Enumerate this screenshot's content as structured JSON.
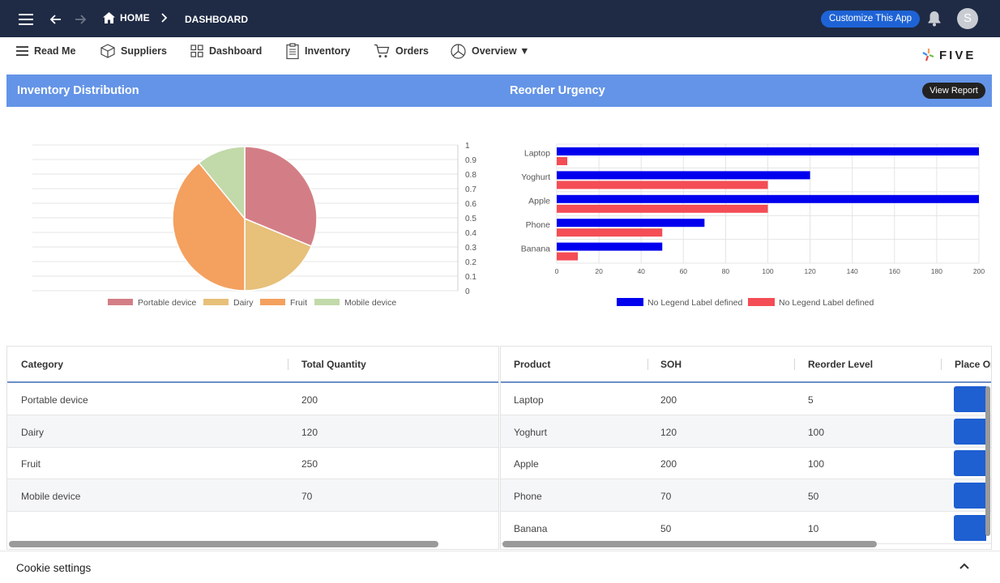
{
  "topbar": {
    "home_label": "HOME",
    "dashboard_label": "DASHBOARD",
    "customize_label": "Customize This App",
    "avatar_initial": "S"
  },
  "menu": {
    "items": [
      {
        "label": "Read Me",
        "icon": "list-icon"
      },
      {
        "label": "Suppliers",
        "icon": "box-icon"
      },
      {
        "label": "Dashboard",
        "icon": "grid-icon"
      },
      {
        "label": "Inventory",
        "icon": "clipboard-icon"
      },
      {
        "label": "Orders",
        "icon": "cart-icon"
      },
      {
        "label": "Overview ▼",
        "icon": "pie-icon"
      }
    ],
    "logo_text": "FIVE"
  },
  "panels": {
    "left_title": "Inventory Distribution",
    "right_title": "Reorder Urgency",
    "view_report_label": "View Report"
  },
  "chart_data": [
    {
      "type": "pie",
      "title": "Inventory Distribution",
      "categories": [
        "Portable device",
        "Dairy",
        "Fruit",
        "Mobile device"
      ],
      "values": [
        200,
        120,
        250,
        70
      ],
      "colors": [
        "#d37e86",
        "#e7c07a",
        "#f4a05f",
        "#c2d9a9"
      ],
      "y_ticks": [
        "1",
        "0.9",
        "0.8",
        "0.7",
        "0.6",
        "0.5",
        "0.4",
        "0.3",
        "0.2",
        "0.1",
        "0"
      ],
      "legend_position": "bottom"
    },
    {
      "type": "bar",
      "orientation": "horizontal",
      "title": "Reorder Urgency",
      "categories": [
        "Laptop",
        "Yoghurt",
        "Apple",
        "Phone",
        "Banana"
      ],
      "series": [
        {
          "name": "No Legend Label defined",
          "color": "#0000ee",
          "values": [
            200,
            120,
            200,
            70,
            50
          ]
        },
        {
          "name": "No Legend Label defined",
          "color": "#f44d55",
          "values": [
            5,
            100,
            100,
            50,
            10
          ]
        }
      ],
      "xlim": [
        0,
        200
      ],
      "x_ticks": [
        "0",
        "20",
        "40",
        "60",
        "80",
        "100",
        "120",
        "140",
        "160",
        "180",
        "200"
      ],
      "legend_position": "bottom"
    }
  ],
  "category_table": {
    "columns": [
      "Category",
      "Total Quantity"
    ],
    "rows": [
      [
        "Portable device",
        "200"
      ],
      [
        "Dairy",
        "120"
      ],
      [
        "Fruit",
        "250"
      ],
      [
        "Mobile device",
        "70"
      ]
    ]
  },
  "product_table": {
    "columns": [
      "Product",
      "SOH",
      "Reorder Level",
      "Place Or"
    ],
    "rows": [
      [
        "Laptop",
        "200",
        "5"
      ],
      [
        "Yoghurt",
        "120",
        "100"
      ],
      [
        "Apple",
        "200",
        "100"
      ],
      [
        "Phone",
        "70",
        "50"
      ],
      [
        "Banana",
        "50",
        "10"
      ]
    ]
  },
  "cookie": {
    "label": "Cookie settings"
  }
}
